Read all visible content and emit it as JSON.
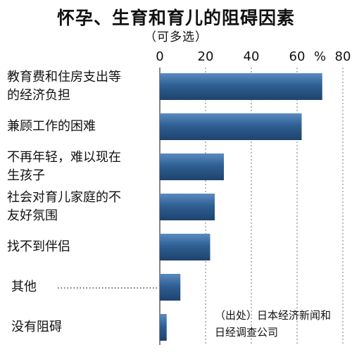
{
  "chart_data": {
    "type": "bar",
    "orientation": "horizontal",
    "title": "怀孕、生育和育儿的阻碍因素",
    "subtitle": "（可多选）",
    "unit": "%",
    "xlim": [
      0,
      80
    ],
    "ticks": [
      "0",
      "20",
      "40",
      "60",
      "80"
    ],
    "grid": "dotted vertical",
    "categories": [
      [
        "教育费和住房支出等",
        "的经济负担"
      ],
      [
        "兼顾工作的困难"
      ],
      [
        "不再年轻，难以现在",
        "生孩子"
      ],
      [
        "社会对育儿家庭的不",
        "友好氛围"
      ],
      [
        "找不到伴侣"
      ],
      [
        "其他"
      ],
      [
        "没有阻碍"
      ]
    ],
    "values": [
      71,
      62,
      28,
      24,
      22,
      9,
      3
    ],
    "bar_color": "#2f5f93"
  },
  "source": [
    "（出处）日本经济新闻和",
    "日经调查公司"
  ]
}
